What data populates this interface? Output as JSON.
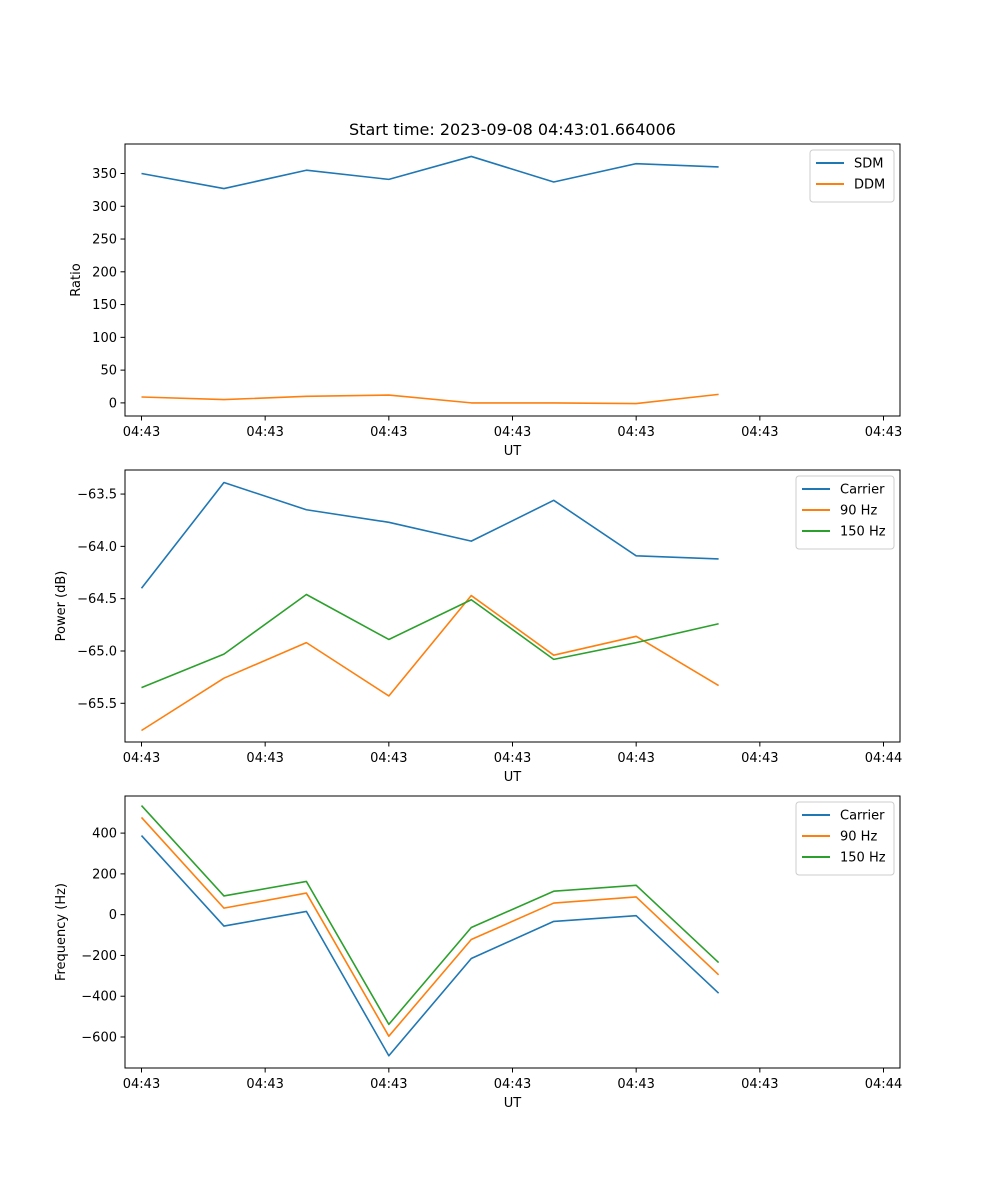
{
  "chart_data": [
    {
      "type": "line",
      "title": "Start time: 2023-09-08 04:43:01.664006",
      "xlabel": "UT",
      "ylabel": "Ratio",
      "x": [
        1,
        2,
        3,
        4,
        5,
        6,
        7,
        8
      ],
      "xlim": [
        0.8,
        10.2
      ],
      "x_ticks": [
        1.0,
        2.5,
        4.0,
        5.5,
        7.0,
        8.5,
        10.0
      ],
      "x_tick_labels": [
        "04:43",
        "04:43",
        "04:43",
        "04:43",
        "04:43",
        "04:43",
        "04:43"
      ],
      "ylim": [
        -20,
        395
      ],
      "y_ticks": [
        0,
        50,
        100,
        150,
        200,
        250,
        300,
        350
      ],
      "y_tick_labels": [
        "0",
        "50",
        "100",
        "150",
        "200",
        "250",
        "300",
        "350"
      ],
      "legend_position": "top-right",
      "series": [
        {
          "name": "SDM",
          "color": "#1f77b4",
          "values": [
            350,
            327,
            355,
            341,
            376,
            337,
            365,
            360
          ]
        },
        {
          "name": "DDM",
          "color": "#ff7f0e",
          "values": [
            9,
            5,
            10,
            12,
            0,
            0,
            -1,
            13
          ]
        }
      ]
    },
    {
      "type": "line",
      "title": "",
      "xlabel": "UT",
      "ylabel": "Power (dB)",
      "x": [
        1,
        2,
        3,
        4,
        5,
        6,
        7,
        8
      ],
      "xlim": [
        0.8,
        10.2
      ],
      "x_ticks": [
        1.0,
        2.5,
        4.0,
        5.5,
        7.0,
        8.5,
        10.0
      ],
      "x_tick_labels": [
        "04:43",
        "04:43",
        "04:43",
        "04:43",
        "04:43",
        "04:43",
        "04:44"
      ],
      "ylim": [
        -65.87,
        -63.27
      ],
      "y_ticks": [
        -65.5,
        -65.0,
        -64.5,
        -64.0,
        -63.5
      ],
      "y_tick_labels": [
        "−65.5",
        "−65.0",
        "−64.5",
        "−64.0",
        "−63.5"
      ],
      "legend_position": "top-right",
      "series": [
        {
          "name": "Carrier",
          "color": "#1f77b4",
          "values": [
            -64.4,
            -63.39,
            -63.65,
            -63.77,
            -63.95,
            -63.56,
            -64.09,
            -64.12
          ]
        },
        {
          "name": "90 Hz",
          "color": "#ff7f0e",
          "values": [
            -65.76,
            -65.26,
            -64.92,
            -65.43,
            -64.47,
            -65.04,
            -64.86,
            -65.33
          ]
        },
        {
          "name": "150 Hz",
          "color": "#2ca02c",
          "values": [
            -65.35,
            -65.03,
            -64.46,
            -64.89,
            -64.51,
            -65.08,
            -64.92,
            -64.74
          ]
        }
      ]
    },
    {
      "type": "line",
      "title": "",
      "xlabel": "UT",
      "ylabel": "Frequency (Hz)",
      "x": [
        1,
        2,
        3,
        4,
        5,
        6,
        7,
        8
      ],
      "xlim": [
        0.8,
        10.2
      ],
      "x_ticks": [
        1.0,
        2.5,
        4.0,
        5.5,
        7.0,
        8.5,
        10.0
      ],
      "x_tick_labels": [
        "04:43",
        "04:43",
        "04:43",
        "04:43",
        "04:43",
        "04:43",
        "04:44"
      ],
      "ylim": [
        -752,
        582
      ],
      "y_ticks": [
        -600,
        -400,
        -200,
        0,
        200,
        400
      ],
      "y_tick_labels": [
        "−600",
        "−400",
        "−200",
        "0",
        "200",
        "400"
      ],
      "legend_position": "top-right",
      "series": [
        {
          "name": "Carrier",
          "color": "#1f77b4",
          "values": [
            388,
            -56,
            16,
            -692,
            -215,
            -33,
            -5,
            -385
          ]
        },
        {
          "name": "90 Hz",
          "color": "#ff7f0e",
          "values": [
            477,
            32,
            106,
            -596,
            -122,
            57,
            87,
            -295
          ]
        },
        {
          "name": "150 Hz",
          "color": "#2ca02c",
          "values": [
            535,
            92,
            163,
            -538,
            -63,
            115,
            144,
            -235
          ]
        }
      ]
    }
  ]
}
